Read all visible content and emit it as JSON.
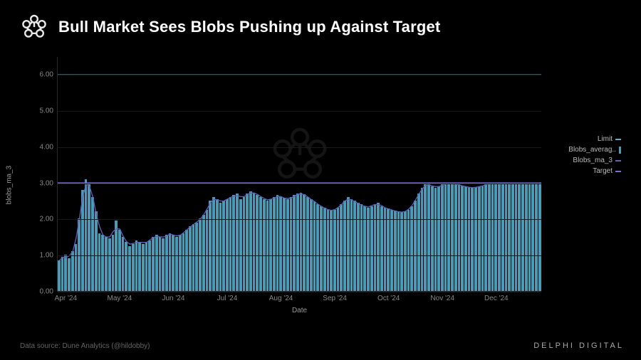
{
  "title": "Bull Market Sees Blobs Pushing up Against Target",
  "data_source": "Data source: Dune Analytics (@hildobby)",
  "brand": "DELPHI DIGITAL",
  "ylabel": "blobs_ma_3",
  "xlabel": "Date",
  "chart": {
    "type": "bar+line",
    "background_color": "#000000",
    "grid_color": "#1a1a1a",
    "axis_color": "#2a2a2a",
    "text_color": "#888888",
    "label_fontsize": 10,
    "title_fontsize": 22,
    "ylim": [
      0,
      6.5
    ],
    "yticks": [
      0.0,
      1.0,
      2.0,
      3.0,
      4.0,
      5.0,
      6.0
    ],
    "xticks": [
      "Apr '24",
      "May '24",
      "Jun '24",
      "Jul '24",
      "Aug '24",
      "Sep '24",
      "Oct '24",
      "Nov '24",
      "Dec '24"
    ],
    "limit_line": {
      "value": 6.0,
      "color": "#5ab0c9"
    },
    "target_line": {
      "value": 3.0,
      "color": "#7b6fd4"
    },
    "bar_color": "#4a9bb8",
    "ma_line_color": "#6b5fb8",
    "bars": [
      0.85,
      0.95,
      1.0,
      0.9,
      1.1,
      1.3,
      2.0,
      2.8,
      3.1,
      3.0,
      2.6,
      2.2,
      1.6,
      1.55,
      1.5,
      1.45,
      1.55,
      1.95,
      1.7,
      1.5,
      1.35,
      1.25,
      1.3,
      1.4,
      1.35,
      1.3,
      1.35,
      1.4,
      1.5,
      1.55,
      1.5,
      1.45,
      1.55,
      1.6,
      1.55,
      1.5,
      1.55,
      1.6,
      1.7,
      1.8,
      1.85,
      1.9,
      2.0,
      2.1,
      2.25,
      2.5,
      2.6,
      2.55,
      2.45,
      2.5,
      2.55,
      2.6,
      2.65,
      2.7,
      2.55,
      2.6,
      2.7,
      2.75,
      2.7,
      2.65,
      2.6,
      2.55,
      2.5,
      2.55,
      2.6,
      2.65,
      2.62,
      2.58,
      2.55,
      2.6,
      2.65,
      2.7,
      2.72,
      2.68,
      2.6,
      2.55,
      2.48,
      2.4,
      2.35,
      2.3,
      2.25,
      2.22,
      2.25,
      2.3,
      2.4,
      2.5,
      2.6,
      2.55,
      2.5,
      2.45,
      2.4,
      2.35,
      2.3,
      2.35,
      2.4,
      2.45,
      2.35,
      2.3,
      2.28,
      2.25,
      2.22,
      2.2,
      2.18,
      2.2,
      2.25,
      2.35,
      2.5,
      2.7,
      2.85,
      2.95,
      3.0,
      2.9,
      2.85,
      2.9,
      2.95,
      2.98,
      3.0,
      3.0,
      2.97,
      2.95,
      2.92,
      2.9,
      2.88,
      2.85,
      2.87,
      2.9,
      2.92,
      2.95,
      2.98,
      3.0,
      3.0,
      2.98,
      2.97,
      2.98,
      3.0,
      3.0,
      2.99,
      3.0,
      3.0,
      3.0,
      3.0,
      3.0,
      3.0,
      3.0
    ],
    "ma_line": [
      0.85,
      0.93,
      0.93,
      0.98,
      1.1,
      1.47,
      2.03,
      2.63,
      2.97,
      2.9,
      2.6,
      2.13,
      1.78,
      1.55,
      1.5,
      1.5,
      1.65,
      1.73,
      1.72,
      1.52,
      1.37,
      1.3,
      1.32,
      1.35,
      1.35,
      1.35,
      1.35,
      1.42,
      1.48,
      1.52,
      1.5,
      1.5,
      1.53,
      1.58,
      1.55,
      1.53,
      1.55,
      1.62,
      1.7,
      1.78,
      1.85,
      1.92,
      2.0,
      2.12,
      2.28,
      2.45,
      2.55,
      2.53,
      2.5,
      2.5,
      2.55,
      2.6,
      2.63,
      2.65,
      2.62,
      2.62,
      2.68,
      2.72,
      2.72,
      2.68,
      2.62,
      2.57,
      2.53,
      2.55,
      2.58,
      2.63,
      2.62,
      2.58,
      2.57,
      2.58,
      2.63,
      2.68,
      2.7,
      2.67,
      2.61,
      2.54,
      2.48,
      2.41,
      2.35,
      2.3,
      2.26,
      2.24,
      2.26,
      2.32,
      2.4,
      2.5,
      2.55,
      2.53,
      2.48,
      2.43,
      2.38,
      2.35,
      2.33,
      2.37,
      2.4,
      2.4,
      2.37,
      2.31,
      2.28,
      2.25,
      2.22,
      2.2,
      2.19,
      2.21,
      2.27,
      2.37,
      2.52,
      2.68,
      2.83,
      2.93,
      2.95,
      2.92,
      2.9,
      2.9,
      2.93,
      2.97,
      2.99,
      2.99,
      2.97,
      2.95,
      2.92,
      2.9,
      2.88,
      2.87,
      2.88,
      2.9,
      2.92,
      2.95,
      2.98,
      2.99,
      2.99,
      2.98,
      2.98,
      2.98,
      2.99,
      3.0,
      3.0,
      3.0,
      3.0,
      3.0,
      3.0,
      3.0,
      3.0,
      3.0
    ]
  },
  "legend": {
    "items": [
      {
        "label": "Limit",
        "type": "line",
        "color": "#5ab0c9"
      },
      {
        "label": "Blobs_averag..",
        "type": "bar",
        "color": "#4a9bb8"
      },
      {
        "label": "Blobs_ma_3",
        "type": "line",
        "color": "#6b5fb8"
      },
      {
        "label": "Target",
        "type": "line",
        "color": "#7b6fd4"
      }
    ]
  },
  "logo_color": "#e8e8e8"
}
